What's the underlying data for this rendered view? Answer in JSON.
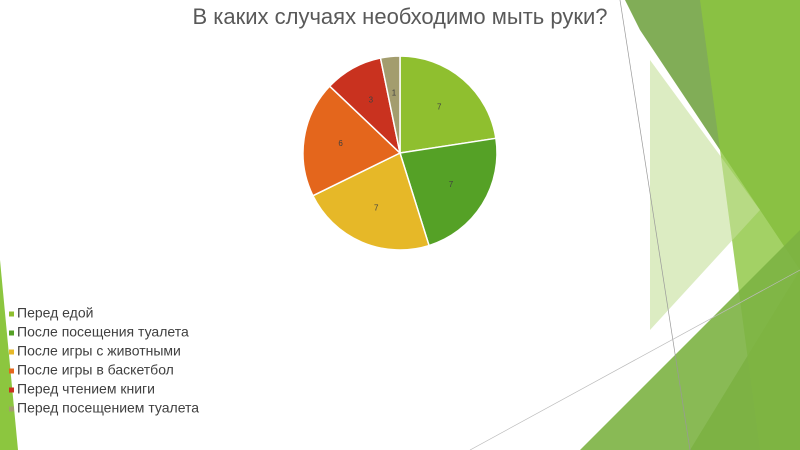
{
  "chart_data": {
    "type": "pie",
    "title": "В каких случаях необходимо мыть руки?",
    "categories": [
      "Перед едой",
      "После посещения туалета",
      "После игры с животными",
      "После игры в баскетбол",
      "Перед чтением книги",
      "Перед посещением туалета"
    ],
    "values": [
      7,
      7,
      7,
      6,
      3,
      1
    ],
    "colors": [
      "#8fbf2f",
      "#55a126",
      "#e6b828",
      "#e4661c",
      "#c9321f",
      "#a39d6e"
    ]
  }
}
